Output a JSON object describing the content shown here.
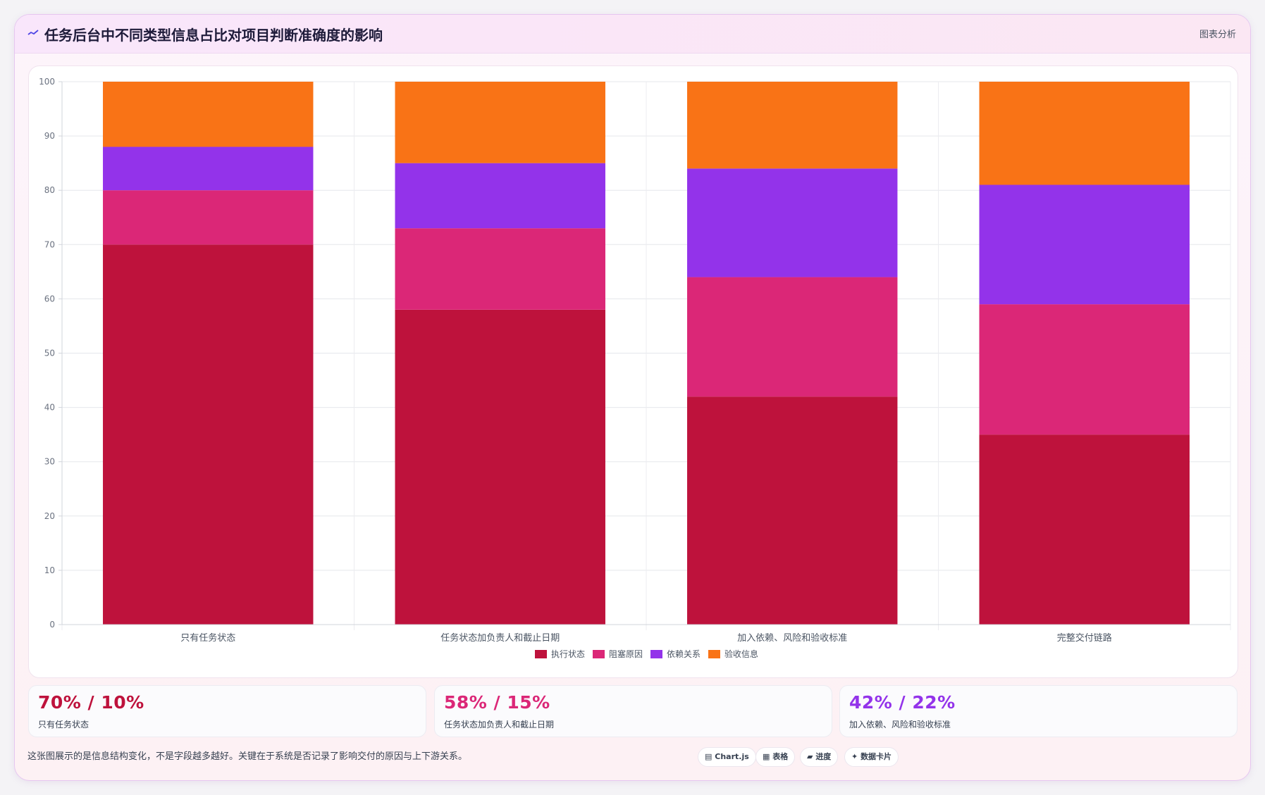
{
  "header": {
    "icon": "trend-line-icon",
    "title": "任务后台中不同类型信息占比对项目判断准确度的影响",
    "action_label": "图表分析"
  },
  "chart_data": {
    "type": "bar",
    "stacked": true,
    "categories": [
      "只有任务状态",
      "任务状态加负责人和截止日期",
      "加入依赖、风险和验收标准",
      "完整交付链路"
    ],
    "series": [
      {
        "name": "执行状态",
        "color": "#be123c",
        "values": [
          70,
          58,
          42,
          35
        ]
      },
      {
        "name": "阻塞原因",
        "color": "#db2777",
        "values": [
          10,
          15,
          22,
          24
        ]
      },
      {
        "name": "依赖关系",
        "color": "#9333ea",
        "values": [
          8,
          12,
          20,
          22
        ]
      },
      {
        "name": "验收信息",
        "color": "#f97316",
        "values": [
          12,
          15,
          16,
          19
        ]
      }
    ],
    "ylim": [
      0,
      100
    ],
    "yticks": [
      0,
      10,
      20,
      30,
      40,
      50,
      60,
      70,
      80,
      90,
      100
    ],
    "grid": true,
    "legend": "bottom-center"
  },
  "stats": [
    {
      "value": "70% / 10%",
      "label": "只有任务状态",
      "color": "#be123c"
    },
    {
      "value": "58% / 15%",
      "label": "任务状态加负责人和截止日期",
      "color": "#db2777"
    },
    {
      "value": "42% / 22%",
      "label": "加入依赖、风险和验收标准",
      "color": "#9333ea"
    }
  ],
  "footer": {
    "note": "这张图展示的是信息结构变化，不是字段越多越好。关键在于系统是否记录了影响交付的原因与上下游关系。",
    "chips": [
      {
        "icon": "chart-icon",
        "glyph": "▤",
        "label": "Chart.js"
      },
      {
        "icon": "table-icon",
        "glyph": "▦",
        "label": "表格"
      },
      {
        "icon": "progress-icon",
        "glyph": "▰",
        "label": "进度"
      },
      {
        "icon": "sparkle-icon",
        "glyph": "✦",
        "label": "数据卡片"
      }
    ]
  }
}
